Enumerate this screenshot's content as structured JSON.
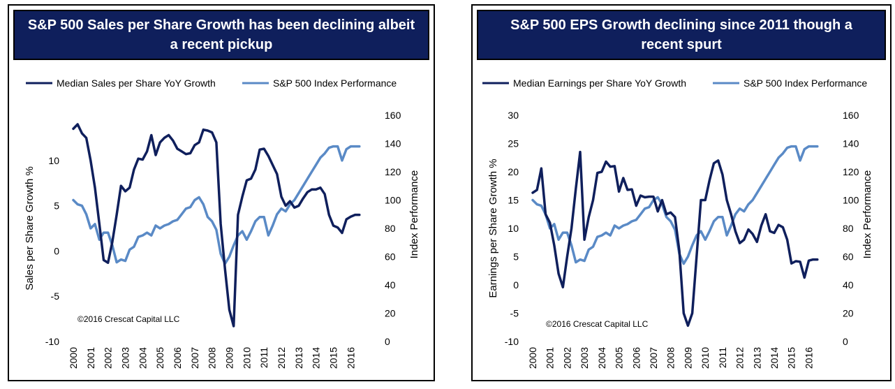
{
  "colors": {
    "sales_eps_line": "#0f1f5c",
    "index_line": "#5a8ac6",
    "title_bg": "#0f1f5c"
  },
  "chart_data": [
    {
      "type": "line",
      "title": "S&P 500 Sales per Share Growth has been declining albeit a recent pickup",
      "ylabel": "Sales per Share Growth %",
      "y2label": "Index Performance",
      "copyright": "©2016 Crescat Capital LLC",
      "ylim": [
        -10,
        15
      ],
      "yticks": [
        -10,
        -5,
        0,
        5,
        10
      ],
      "y2lim": [
        0,
        160
      ],
      "y2ticks": [
        0,
        20,
        40,
        60,
        80,
        100,
        120,
        140,
        160
      ],
      "xlim": [
        2000,
        2016.75
      ],
      "xticks": [
        "2000",
        "2001",
        "2002",
        "2003",
        "2004",
        "2005",
        "2006",
        "2007",
        "2008",
        "2009",
        "2010",
        "2011",
        "2012",
        "2013",
        "2014",
        "2015",
        "2016"
      ],
      "legend_position": "top",
      "series": [
        {
          "name": "Median Sales per Share YoY Growth",
          "axis": "left",
          "x": [
            2000.0,
            2000.25,
            2000.5,
            2000.75,
            2001.0,
            2001.25,
            2001.5,
            2001.75,
            2002.0,
            2002.25,
            2002.5,
            2002.75,
            2003.0,
            2003.25,
            2003.5,
            2003.75,
            2004.0,
            2004.25,
            2004.5,
            2004.75,
            2005.0,
            2005.25,
            2005.5,
            2005.75,
            2006.0,
            2006.25,
            2006.5,
            2006.75,
            2007.0,
            2007.25,
            2007.5,
            2007.75,
            2008.0,
            2008.25,
            2008.5,
            2008.75,
            2009.0,
            2009.25,
            2009.5,
            2009.75,
            2010.0,
            2010.25,
            2010.5,
            2010.75,
            2011.0,
            2011.25,
            2011.5,
            2011.75,
            2012.0,
            2012.25,
            2012.5,
            2012.75,
            2013.0,
            2013.25,
            2013.5,
            2013.75,
            2014.0,
            2014.25,
            2014.5,
            2014.75,
            2015.0,
            2015.25,
            2015.5,
            2015.75,
            2016.0,
            2016.25,
            2016.5
          ],
          "values": [
            13.5,
            14.0,
            13.0,
            12.5,
            10.0,
            7.0,
            3.0,
            -1.0,
            -1.3,
            1.0,
            4.0,
            7.2,
            6.6,
            7.0,
            9.0,
            10.2,
            10.1,
            11.0,
            12.8,
            10.6,
            12.0,
            12.5,
            12.8,
            12.2,
            11.3,
            11.0,
            10.7,
            10.8,
            11.7,
            12.0,
            13.4,
            13.3,
            13.1,
            12.0,
            3.0,
            -2.0,
            -6.5,
            -8.3,
            4.0,
            6.0,
            7.8,
            8.0,
            9.0,
            11.2,
            11.3,
            10.5,
            9.5,
            8.5,
            6.0,
            5.0,
            5.5,
            4.8,
            5.0,
            5.8,
            6.5,
            6.8,
            6.8,
            7.0,
            6.3,
            4.0,
            2.8,
            2.6,
            2.0,
            3.5,
            3.8,
            4.0,
            4.0
          ]
        },
        {
          "name": "S&P 500 Index Performance",
          "axis": "right",
          "x": [
            2000.0,
            2000.25,
            2000.5,
            2000.75,
            2001.0,
            2001.25,
            2001.5,
            2001.75,
            2002.0,
            2002.25,
            2002.5,
            2002.75,
            2003.0,
            2003.25,
            2003.5,
            2003.75,
            2004.0,
            2004.25,
            2004.5,
            2004.75,
            2005.0,
            2005.25,
            2005.5,
            2005.75,
            2006.0,
            2006.25,
            2006.5,
            2006.75,
            2007.0,
            2007.25,
            2007.5,
            2007.75,
            2008.0,
            2008.25,
            2008.5,
            2008.75,
            2009.0,
            2009.25,
            2009.5,
            2009.75,
            2010.0,
            2010.25,
            2010.5,
            2010.75,
            2011.0,
            2011.25,
            2011.5,
            2011.75,
            2012.0,
            2012.25,
            2012.5,
            2012.75,
            2013.0,
            2013.25,
            2013.5,
            2013.75,
            2014.0,
            2014.25,
            2014.5,
            2014.75,
            2015.0,
            2015.25,
            2015.5,
            2015.75,
            2016.0,
            2016.25,
            2016.5
          ],
          "values": [
            100,
            97,
            96,
            90,
            80,
            83,
            72,
            77,
            77,
            68,
            56,
            58,
            57,
            65,
            67,
            74,
            75,
            77,
            75,
            82,
            80,
            82,
            83,
            85,
            86,
            90,
            94,
            95,
            100,
            102,
            97,
            88,
            85,
            79,
            62,
            55,
            60,
            68,
            75,
            78,
            72,
            78,
            85,
            88,
            88,
            75,
            82,
            90,
            94,
            92,
            97,
            100,
            105,
            110,
            115,
            120,
            125,
            130,
            133,
            137,
            138,
            138,
            128,
            136,
            138,
            138,
            138
          ]
        }
      ]
    },
    {
      "type": "line",
      "title": "S&P 500 EPS Growth declining since 2011 though a recent spurt",
      "ylabel": "Earnings per Share Growth %",
      "y2label": "Index Performance",
      "copyright": "©2016 Crescat Capital LLC",
      "ylim": [
        -10,
        30
      ],
      "yticks": [
        -10,
        -5,
        0,
        5,
        10,
        15,
        20,
        25,
        30
      ],
      "y2lim": [
        0,
        160
      ],
      "y2ticks": [
        0,
        20,
        40,
        60,
        80,
        100,
        120,
        140,
        160
      ],
      "xlim": [
        2000,
        2016.75
      ],
      "xticks": [
        "2000",
        "2001",
        "2002",
        "2003",
        "2004",
        "2005",
        "2006",
        "2007",
        "2008",
        "2009",
        "2010",
        "2011",
        "2012",
        "2013",
        "2014",
        "2015",
        "2016"
      ],
      "legend_position": "top",
      "series": [
        {
          "name": "Median Earnings per Share YoY Growth",
          "axis": "left",
          "x": [
            2000.0,
            2000.25,
            2000.5,
            2000.75,
            2001.0,
            2001.25,
            2001.5,
            2001.75,
            2002.0,
            2002.25,
            2002.5,
            2002.75,
            2003.0,
            2003.25,
            2003.5,
            2003.75,
            2004.0,
            2004.25,
            2004.5,
            2004.75,
            2005.0,
            2005.25,
            2005.5,
            2005.75,
            2006.0,
            2006.25,
            2006.5,
            2006.75,
            2007.0,
            2007.25,
            2007.5,
            2007.75,
            2008.0,
            2008.25,
            2008.5,
            2008.75,
            2009.0,
            2009.25,
            2009.5,
            2009.75,
            2010.0,
            2010.25,
            2010.5,
            2010.75,
            2011.0,
            2011.25,
            2011.5,
            2011.75,
            2012.0,
            2012.25,
            2012.5,
            2012.75,
            2013.0,
            2013.25,
            2013.5,
            2013.75,
            2014.0,
            2014.25,
            2014.5,
            2014.75,
            2015.0,
            2015.25,
            2015.5,
            2015.75,
            2016.0,
            2016.25,
            2016.5
          ],
          "values": [
            16.3,
            16.8,
            20.6,
            12.5,
            11.0,
            7.0,
            2.0,
            -0.4,
            5.0,
            10.0,
            17.0,
            23.5,
            8.0,
            12.0,
            15.0,
            19.8,
            20.0,
            21.8,
            20.9,
            21.0,
            16.5,
            18.9,
            16.8,
            16.9,
            14.0,
            15.8,
            15.5,
            15.6,
            15.6,
            13.0,
            15.0,
            12.5,
            12.8,
            12.0,
            6.0,
            -5.0,
            -7.2,
            -5.0,
            5.0,
            15.0,
            15.0,
            18.5,
            21.5,
            22.0,
            19.5,
            15.0,
            12.5,
            9.5,
            7.4,
            8.0,
            9.8,
            9.0,
            7.6,
            10.5,
            12.5,
            9.5,
            9.2,
            10.6,
            10.2,
            8.0,
            3.8,
            4.2,
            4.1,
            1.3,
            4.3,
            4.5,
            4.5
          ]
        },
        {
          "name": "S&P 500 Index Performance",
          "axis": "right",
          "x": [
            2000.0,
            2000.25,
            2000.5,
            2000.75,
            2001.0,
            2001.25,
            2001.5,
            2001.75,
            2002.0,
            2002.25,
            2002.5,
            2002.75,
            2003.0,
            2003.25,
            2003.5,
            2003.75,
            2004.0,
            2004.25,
            2004.5,
            2004.75,
            2005.0,
            2005.25,
            2005.5,
            2005.75,
            2006.0,
            2006.25,
            2006.5,
            2006.75,
            2007.0,
            2007.25,
            2007.5,
            2007.75,
            2008.0,
            2008.25,
            2008.5,
            2008.75,
            2009.0,
            2009.25,
            2009.5,
            2009.75,
            2010.0,
            2010.25,
            2010.5,
            2010.75,
            2011.0,
            2011.25,
            2011.5,
            2011.75,
            2012.0,
            2012.25,
            2012.5,
            2012.75,
            2013.0,
            2013.25,
            2013.5,
            2013.75,
            2014.0,
            2014.25,
            2014.5,
            2014.75,
            2015.0,
            2015.25,
            2015.5,
            2015.75,
            2016.0,
            2016.25,
            2016.5
          ],
          "values": [
            100,
            97,
            96,
            90,
            80,
            83,
            72,
            77,
            77,
            68,
            56,
            58,
            57,
            65,
            67,
            74,
            75,
            77,
            75,
            82,
            80,
            82,
            83,
            85,
            86,
            90,
            94,
            95,
            100,
            102,
            97,
            88,
            85,
            79,
            62,
            55,
            60,
            68,
            75,
            78,
            72,
            78,
            85,
            88,
            88,
            75,
            82,
            90,
            94,
            92,
            97,
            100,
            105,
            110,
            115,
            120,
            125,
            130,
            133,
            137,
            138,
            138,
            128,
            136,
            138,
            138,
            138
          ]
        }
      ]
    }
  ]
}
